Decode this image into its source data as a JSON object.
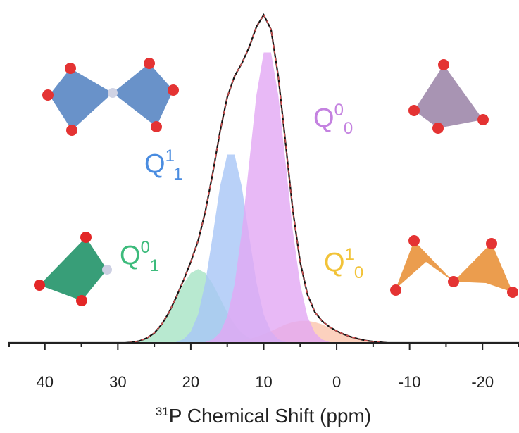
{
  "chart_data": {
    "type": "area",
    "xlabel_sup": "31",
    "xlabel": "P Chemical Shift (ppm)",
    "xlim": [
      45,
      -25
    ],
    "ylim": [
      0,
      102
    ],
    "xticks": [
      40,
      30,
      20,
      10,
      0,
      {
        "value": -10,
        "label": "-10"
      },
      {
        "value": -20,
        "label": "-20"
      }
    ],
    "xminorticks": [
      45,
      35,
      25,
      15,
      5,
      -5,
      -15,
      -25
    ],
    "series": [
      {
        "label": {
          "text": "Q",
          "sup": "0",
          "sub": "1"
        },
        "color": "#a6e3c4",
        "label_color": "#3dbb7c",
        "x": [
          28,
          27,
          26,
          25,
          24,
          23,
          22,
          21,
          20,
          19,
          18,
          17,
          16,
          15,
          14,
          13,
          12,
          11,
          10
        ],
        "values": [
          0.2,
          0.6,
          1.5,
          3.0,
          5.6,
          9.2,
          13.6,
          17.9,
          21.2,
          22.4,
          21.2,
          17.9,
          13.6,
          9.2,
          5.6,
          3.0,
          1.5,
          0.6,
          0.2
        ]
      },
      {
        "label": {
          "text": "Q",
          "sup": "1",
          "sub": "0"
        },
        "color": "#fbc6ae",
        "label_color": "#f2c338",
        "x": [
          15,
          14,
          13,
          12,
          11,
          10,
          9,
          8,
          7,
          6,
          5,
          4,
          3,
          2,
          1,
          0,
          -1,
          -2,
          -3,
          -4,
          -5,
          -6
        ],
        "values": [
          0.2,
          0.4,
          0.7,
          1.2,
          1.8,
          2.6,
          3.6,
          4.6,
          5.6,
          6.3,
          6.7,
          6.7,
          6.3,
          5.6,
          4.6,
          3.6,
          2.6,
          1.8,
          1.2,
          0.7,
          0.4,
          0.2
        ]
      },
      {
        "label": {
          "text": "Q",
          "sup": "1",
          "sub": "1"
        },
        "color": "#a8c6f6",
        "label_color": "#4a8ce0",
        "x": [
          22,
          21,
          20,
          19,
          18,
          17,
          16,
          15,
          14,
          13,
          12,
          11,
          10,
          9,
          8,
          7
        ],
        "values": [
          0.3,
          1.1,
          3.4,
          8.6,
          18.4,
          32.5,
          47.4,
          57.2,
          57.2,
          47.4,
          32.5,
          18.4,
          8.6,
          3.4,
          1.1,
          0.3
        ]
      },
      {
        "label": {
          "text": "Q",
          "sup": "0",
          "sub": "0"
        },
        "color": "#e2a8f4",
        "label_color": "#c482e0",
        "x": [
          18,
          17,
          16,
          15,
          14,
          13,
          12,
          11,
          10,
          9,
          8,
          7,
          6,
          5,
          4,
          3,
          2,
          1
        ],
        "values": [
          0.3,
          1.0,
          3.1,
          8.0,
          17.8,
          33.8,
          54.6,
          75.2,
          88.2,
          88.2,
          75.2,
          54.6,
          33.8,
          17.8,
          8.0,
          3.1,
          1.0,
          0.3
        ]
      }
    ],
    "measured": {
      "color": "#111111",
      "fit_color": "#e05555",
      "x": [
        45,
        30,
        29,
        28,
        27,
        26,
        25,
        24,
        23,
        22,
        21,
        20,
        19,
        18,
        17,
        16,
        15,
        14,
        13,
        12,
        11,
        10,
        9,
        8,
        7,
        6,
        5,
        4,
        3,
        2,
        1,
        0,
        -1,
        -2,
        -3,
        -4,
        -5,
        -6,
        -7,
        -25
      ],
      "values": [
        0,
        0,
        0,
        0.2,
        0.6,
        1.5,
        3.0,
        5.6,
        9.2,
        13.9,
        19.0,
        24.6,
        31.0,
        39.9,
        51.4,
        64.1,
        74.6,
        81.0,
        84.9,
        89.8,
        96.0,
        99.6,
        95.2,
        80.9,
        60.5,
        40.1,
        24.5,
        14.7,
        9.4,
        6.6,
        4.9,
        3.6,
        2.6,
        1.8,
        1.2,
        0.7,
        0.4,
        0.2,
        0,
        0
      ]
    }
  }
}
